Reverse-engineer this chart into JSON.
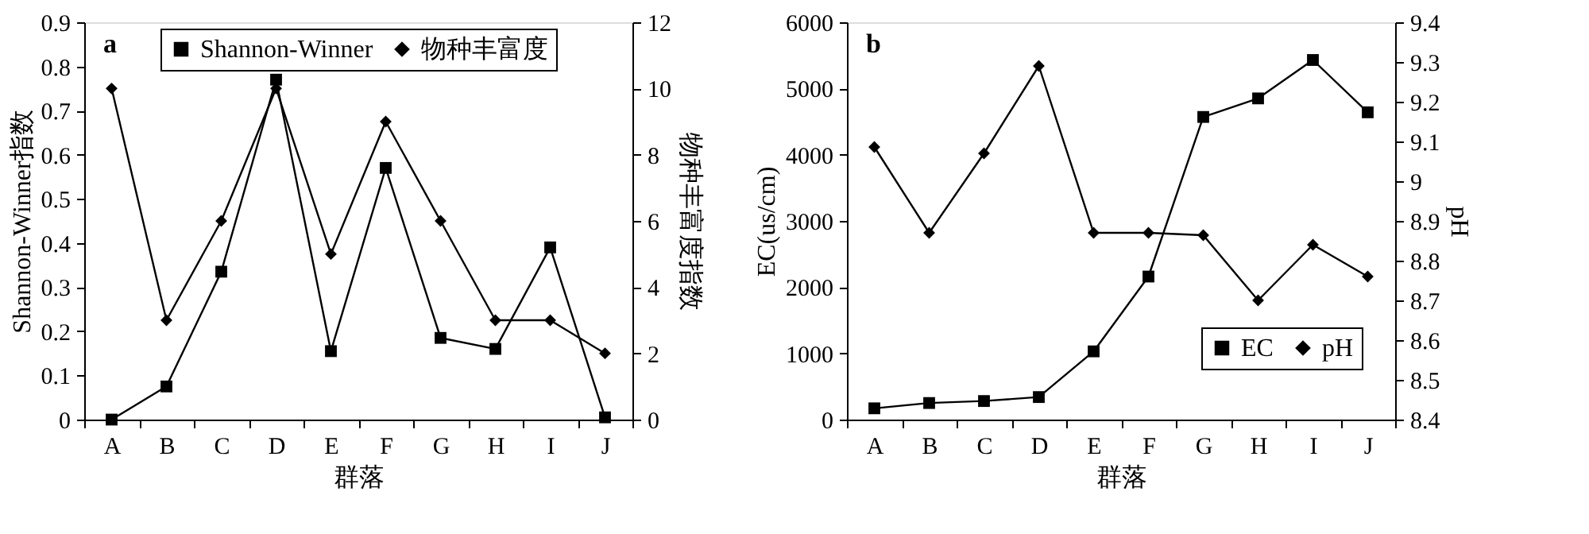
{
  "chart_data": [
    {
      "type": "line",
      "title": "a",
      "categories": [
        "A",
        "B",
        "C",
        "D",
        "E",
        "F",
        "G",
        "H",
        "I",
        "J"
      ],
      "xlabel": "群落",
      "ylabel": "Shannon-Winner指数",
      "y2label": "物种丰富度指数",
      "ylim": [
        0,
        0.9
      ],
      "yticks": [
        0,
        0.1,
        0.2,
        0.3,
        0.4,
        0.5,
        0.6,
        0.7,
        0.8,
        0.9
      ],
      "y2lim": [
        0,
        12
      ],
      "y2ticks": [
        0,
        2,
        4,
        6,
        8,
        10,
        12
      ],
      "grid": false,
      "legend": "top",
      "line_style": "solid",
      "series": [
        {
          "name": "Shannon-Winner",
          "color": "#000000",
          "marker": "square",
          "values": [
            0,
            0.075,
            0.335,
            0.77,
            0.155,
            0.57,
            0.185,
            0.16,
            0.39,
            0.005
          ]
        },
        {
          "name": "物种丰富度",
          "color": "#000000",
          "marker": "diamond",
          "axis": "y2",
          "values": [
            10,
            3,
            6,
            10,
            5,
            9,
            6,
            3,
            3,
            2
          ]
        }
      ]
    },
    {
      "type": "line",
      "title": "b",
      "categories": [
        "A",
        "B",
        "C",
        "D",
        "E",
        "F",
        "G",
        "H",
        "I",
        "J"
      ],
      "xlabel": "群落",
      "ylabel": "EC(us/cm)",
      "y2label": "pH",
      "ylim": [
        0,
        6000
      ],
      "yticks": [
        0,
        1000,
        2000,
        3000,
        4000,
        5000,
        6000
      ],
      "y2lim": [
        8.4,
        9.4
      ],
      "y2ticks": [
        8.4,
        8.5,
        8.6,
        8.7,
        8.8,
        8.9,
        9,
        9.1,
        9.2,
        9.3,
        9.4
      ],
      "grid": false,
      "legend": "bottom right",
      "line_style": "solid",
      "series": [
        {
          "name": "EC",
          "color": "#000000",
          "marker": "square",
          "values": [
            170,
            250,
            280,
            340,
            1030,
            2160,
            4570,
            4850,
            5430,
            4640
          ]
        },
        {
          "name": "pH",
          "color": "#000000",
          "marker": "diamond",
          "axis": "y2",
          "values": [
            9.086,
            8.87,
            9.07,
            9.29,
            8.87,
            8.87,
            8.864,
            8.7,
            8.84,
            8.76
          ]
        }
      ]
    }
  ]
}
